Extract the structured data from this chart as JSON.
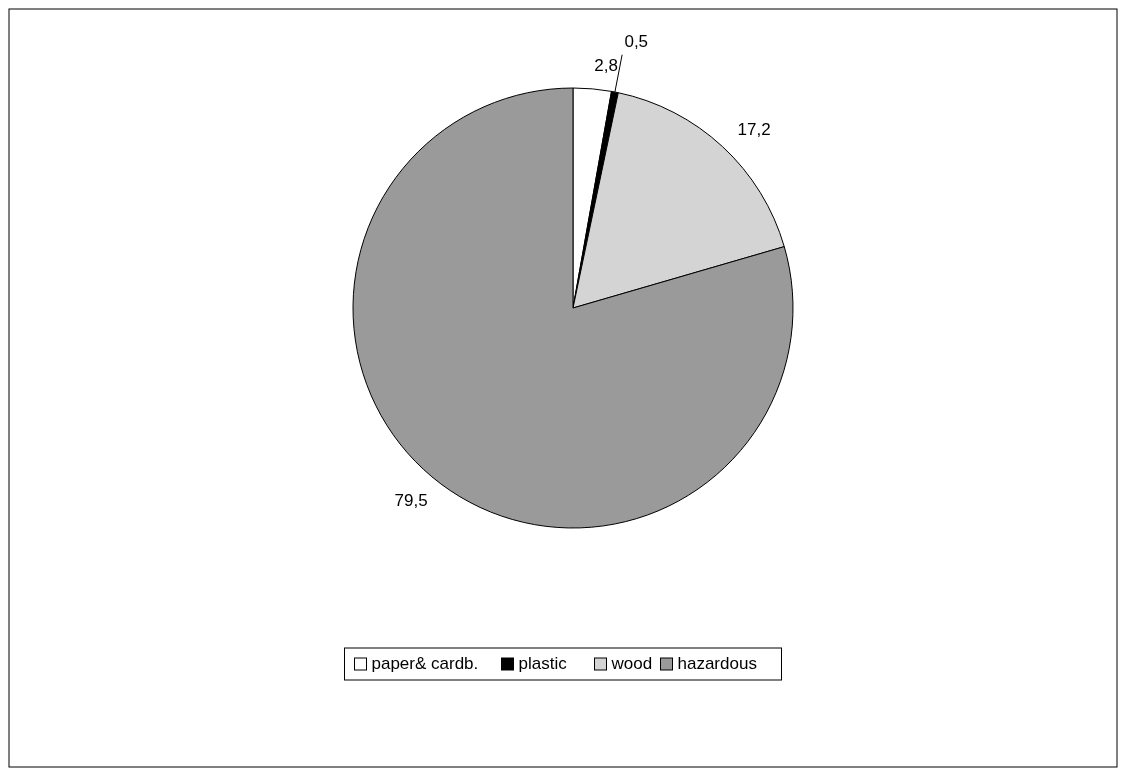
{
  "chart_data": {
    "type": "pie",
    "categories": [
      "paper& cardb.",
      "plastic",
      "wood",
      "hazardous"
    ],
    "values": [
      2.8,
      0.5,
      17.2,
      79.5
    ],
    "value_labels": [
      "2,8",
      "0,5",
      "17,2",
      "79,5"
    ],
    "colors": [
      "#ffffff",
      "#000000",
      "#d4d4d4",
      "#9a9a9a"
    ],
    "legend": "bottom"
  }
}
